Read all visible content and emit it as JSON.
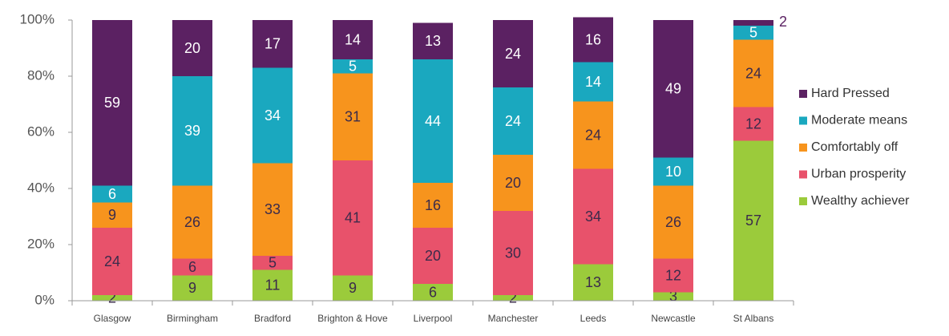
{
  "chart_data": {
    "type": "stacked_bar",
    "categories": [
      "Glasgow",
      "Birmingham",
      "Bradford",
      "Brighton & Hove",
      "Liverpool",
      "Manchester",
      "Leeds",
      "Newcastle",
      "St Albans"
    ],
    "series": [
      {
        "name": "Wealthy achiever",
        "color": "#9bcb3b",
        "values": [
          2,
          9,
          11,
          9,
          6,
          2,
          13,
          3,
          57
        ]
      },
      {
        "name": "Urban prosperity",
        "color": "#e8526b",
        "values": [
          24,
          6,
          5,
          41,
          20,
          30,
          34,
          12,
          12
        ]
      },
      {
        "name": "Comfortably off",
        "color": "#f7941d",
        "values": [
          9,
          26,
          33,
          31,
          16,
          20,
          24,
          26,
          24
        ]
      },
      {
        "name": "Moderate means",
        "color": "#1aa8bf",
        "values": [
          6,
          39,
          34,
          5,
          44,
          24,
          14,
          10,
          5
        ]
      },
      {
        "name": "Hard Pressed",
        "color": "#5b2162",
        "values": [
          59,
          20,
          17,
          14,
          13,
          24,
          16,
          49,
          2
        ]
      }
    ],
    "ylim": [
      0,
      100
    ],
    "yticks": [
      {
        "value": 0,
        "label": "0%"
      },
      {
        "value": 20,
        "label": "20%"
      },
      {
        "value": 40,
        "label": "40%"
      },
      {
        "value": 60,
        "label": "60%"
      },
      {
        "value": 80,
        "label": "80%"
      },
      {
        "value": 100,
        "label": "100%"
      }
    ],
    "legend": "right"
  }
}
